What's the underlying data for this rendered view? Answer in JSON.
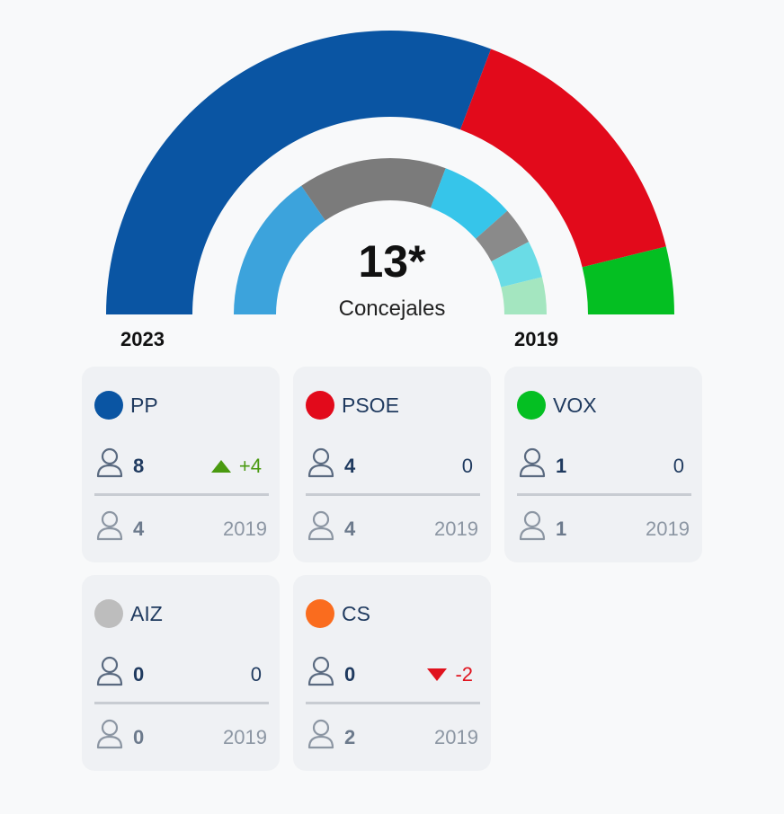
{
  "chart_data": {
    "type": "pie",
    "title": "",
    "center_value": "13*",
    "center_label": "Concejales",
    "years": {
      "current": "2023",
      "previous": "2019"
    },
    "rings": [
      {
        "name": "2023",
        "segments": [
          {
            "party": "PP",
            "seats": 8,
            "color": "#0a55a3"
          },
          {
            "party": "PSOE",
            "seats": 4,
            "color": "#e20a1b"
          },
          {
            "party": "VOX",
            "seats": 1,
            "color": "#04bf22"
          }
        ]
      },
      {
        "name": "2019",
        "segments": [
          {
            "seats": 4,
            "color": "#3ca3dc"
          },
          {
            "seats": 4,
            "color": "#7b7b7b"
          },
          {
            "seats": 2,
            "color": "#36c5ea"
          },
          {
            "seats": 1,
            "color": "#8a8a8a"
          },
          {
            "seats": 1,
            "color": "#6adce6"
          },
          {
            "seats": 1,
            "color": "#a4e6c0"
          }
        ]
      }
    ]
  },
  "parties": [
    {
      "name": "PP",
      "color": "#0a55a3",
      "seats": "8",
      "change": "+4",
      "direction": "up",
      "prev_seats": "4",
      "prev_year": "2019"
    },
    {
      "name": "PSOE",
      "color": "#e20a1b",
      "seats": "4",
      "change": "0",
      "direction": "none",
      "prev_seats": "4",
      "prev_year": "2019"
    },
    {
      "name": "VOX",
      "color": "#04bf22",
      "seats": "1",
      "change": "0",
      "direction": "none",
      "prev_seats": "1",
      "prev_year": "2019"
    },
    {
      "name": "AIZ",
      "color": "#bdbdbd",
      "seats": "0",
      "change": "0",
      "direction": "none",
      "prev_seats": "0",
      "prev_year": "2019"
    },
    {
      "name": "CS",
      "color": "#fa6c1e",
      "seats": "0",
      "change": "-2",
      "direction": "down",
      "prev_seats": "2",
      "prev_year": "2019"
    }
  ],
  "icons": {
    "person": "person-icon",
    "up": "triangle-up-icon",
    "down": "triangle-down-icon"
  }
}
